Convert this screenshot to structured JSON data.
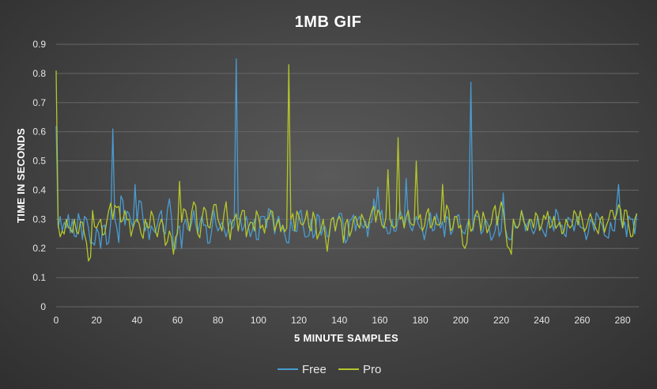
{
  "chart_data": {
    "type": "line",
    "title": "1MB GIF",
    "xlabel": "5 MINUTE SAMPLES",
    "ylabel": "TIME IN SECONDS",
    "xlim": [
      0,
      288
    ],
    "ylim": [
      0,
      0.9
    ],
    "x_ticks": [
      0,
      20,
      40,
      60,
      80,
      100,
      120,
      140,
      160,
      180,
      200,
      220,
      240,
      260,
      280
    ],
    "y_ticks": [
      0,
      0.1,
      0.2,
      0.3,
      0.4,
      0.5,
      0.6,
      0.7,
      0.8,
      0.9
    ],
    "y_tick_labels": [
      "0",
      "0.1",
      "0.2",
      "0.3",
      "0.4",
      "0.5",
      "0.6",
      "0.7",
      "0.8",
      "0.9"
    ],
    "grid": true,
    "legend": "bottom",
    "series": [
      {
        "name": "Free",
        "color": "#4a9bd1",
        "baseline": 0.27,
        "points": [
          [
            0,
            0.62
          ],
          [
            1,
            0.27
          ],
          [
            2,
            0.31
          ],
          [
            3,
            0.26
          ],
          [
            4,
            0.29
          ],
          [
            5,
            0.27
          ],
          [
            8,
            0.3
          ],
          [
            10,
            0.24
          ],
          [
            11,
            0.32
          ],
          [
            13,
            0.23
          ],
          [
            14,
            0.31
          ],
          [
            16,
            0.27
          ],
          [
            18,
            0.22
          ],
          [
            20,
            0.27
          ],
          [
            22,
            0.2
          ],
          [
            24,
            0.28
          ],
          [
            26,
            0.22
          ],
          [
            28,
            0.61
          ],
          [
            29,
            0.3
          ],
          [
            30,
            0.27
          ],
          [
            31,
            0.22
          ],
          [
            32,
            0.38
          ],
          [
            34,
            0.28
          ],
          [
            36,
            0.32
          ],
          [
            38,
            0.27
          ],
          [
            39,
            0.42
          ],
          [
            40,
            0.29
          ],
          [
            42,
            0.36
          ],
          [
            44,
            0.26
          ],
          [
            46,
            0.23
          ],
          [
            50,
            0.28
          ],
          [
            52,
            0.33
          ],
          [
            54,
            0.25
          ],
          [
            56,
            0.37
          ],
          [
            58,
            0.21
          ],
          [
            60,
            0.27
          ],
          [
            62,
            0.2
          ],
          [
            64,
            0.3
          ],
          [
            66,
            0.26
          ],
          [
            68,
            0.33
          ],
          [
            70,
            0.25
          ],
          [
            72,
            0.31
          ],
          [
            74,
            0.28
          ],
          [
            76,
            0.22
          ],
          [
            78,
            0.33
          ],
          [
            80,
            0.26
          ],
          [
            82,
            0.29
          ],
          [
            84,
            0.24
          ],
          [
            86,
            0.3
          ],
          [
            88,
            0.28
          ],
          [
            89,
            0.85
          ],
          [
            90,
            0.3
          ],
          [
            92,
            0.26
          ],
          [
            94,
            0.31
          ],
          [
            96,
            0.24
          ],
          [
            98,
            0.3
          ],
          [
            100,
            0.23
          ],
          [
            102,
            0.31
          ],
          [
            104,
            0.27
          ],
          [
            106,
            0.33
          ],
          [
            108,
            0.25
          ],
          [
            110,
            0.31
          ],
          [
            112,
            0.27
          ],
          [
            114,
            0.22
          ],
          [
            116,
            0.3
          ],
          [
            118,
            0.26
          ],
          [
            120,
            0.32
          ],
          [
            122,
            0.28
          ],
          [
            124,
            0.24
          ],
          [
            126,
            0.3
          ],
          [
            128,
            0.25
          ],
          [
            130,
            0.31
          ],
          [
            132,
            0.27
          ],
          [
            134,
            0.24
          ],
          [
            136,
            0.3
          ],
          [
            138,
            0.26
          ],
          [
            140,
            0.32
          ],
          [
            142,
            0.28
          ],
          [
            144,
            0.23
          ],
          [
            146,
            0.3
          ],
          [
            148,
            0.26
          ],
          [
            150,
            0.31
          ],
          [
            152,
            0.27
          ],
          [
            154,
            0.24
          ],
          [
            156,
            0.29
          ],
          [
            157,
            0.37
          ],
          [
            158,
            0.33
          ],
          [
            159,
            0.41
          ],
          [
            160,
            0.31
          ],
          [
            162,
            0.27
          ],
          [
            164,
            0.25
          ],
          [
            166,
            0.3
          ],
          [
            168,
            0.26
          ],
          [
            170,
            0.33
          ],
          [
            172,
            0.28
          ],
          [
            173,
            0.44
          ],
          [
            174,
            0.3
          ],
          [
            176,
            0.26
          ],
          [
            178,
            0.31
          ],
          [
            180,
            0.27
          ],
          [
            182,
            0.23
          ],
          [
            184,
            0.3
          ],
          [
            186,
            0.26
          ],
          [
            188,
            0.32
          ],
          [
            190,
            0.27
          ],
          [
            192,
            0.24
          ],
          [
            194,
            0.3
          ],
          [
            196,
            0.26
          ],
          [
            198,
            0.31
          ],
          [
            200,
            0.27
          ],
          [
            202,
            0.25
          ],
          [
            204,
            0.3
          ],
          [
            205,
            0.77
          ],
          [
            206,
            0.26
          ],
          [
            208,
            0.31
          ],
          [
            210,
            0.25
          ],
          [
            212,
            0.3
          ],
          [
            214,
            0.27
          ],
          [
            216,
            0.24
          ],
          [
            218,
            0.31
          ],
          [
            220,
            0.26
          ],
          [
            221,
            0.39
          ],
          [
            222,
            0.27
          ],
          [
            224,
            0.23
          ],
          [
            226,
            0.3
          ],
          [
            228,
            0.27
          ],
          [
            230,
            0.33
          ],
          [
            232,
            0.26
          ],
          [
            234,
            0.3
          ],
          [
            236,
            0.25
          ],
          [
            238,
            0.31
          ],
          [
            240,
            0.27
          ],
          [
            242,
            0.24
          ],
          [
            244,
            0.31
          ],
          [
            246,
            0.26
          ],
          [
            248,
            0.32
          ],
          [
            250,
            0.28
          ],
          [
            252,
            0.24
          ],
          [
            254,
            0.3
          ],
          [
            256,
            0.26
          ],
          [
            258,
            0.31
          ],
          [
            260,
            0.27
          ],
          [
            262,
            0.23
          ],
          [
            264,
            0.3
          ],
          [
            266,
            0.26
          ],
          [
            268,
            0.31
          ],
          [
            270,
            0.28
          ],
          [
            272,
            0.24
          ],
          [
            274,
            0.29
          ],
          [
            276,
            0.26
          ],
          [
            278,
            0.42
          ],
          [
            279,
            0.3
          ],
          [
            280,
            0.27
          ],
          [
            282,
            0.24
          ],
          [
            284,
            0.3
          ],
          [
            286,
            0.25
          ],
          [
            287,
            0.32
          ]
        ]
      },
      {
        "name": "Pro",
        "color": "#b5c62a",
        "baseline": 0.28,
        "points": [
          [
            0,
            0.81
          ],
          [
            1,
            0.28
          ],
          [
            2,
            0.24
          ],
          [
            3,
            0.26
          ],
          [
            5,
            0.3
          ],
          [
            7,
            0.27
          ],
          [
            9,
            0.3
          ],
          [
            11,
            0.25
          ],
          [
            13,
            0.29
          ],
          [
            15,
            0.22
          ],
          [
            17,
            0.17
          ],
          [
            18,
            0.33
          ],
          [
            20,
            0.27
          ],
          [
            22,
            0.3
          ],
          [
            24,
            0.25
          ],
          [
            26,
            0.33
          ],
          [
            28,
            0.3
          ],
          [
            30,
            0.34
          ],
          [
            32,
            0.29
          ],
          [
            34,
            0.33
          ],
          [
            36,
            0.3
          ],
          [
            38,
            0.27
          ],
          [
            40,
            0.3
          ],
          [
            42,
            0.25
          ],
          [
            44,
            0.3
          ],
          [
            46,
            0.27
          ],
          [
            48,
            0.31
          ],
          [
            50,
            0.24
          ],
          [
            52,
            0.3
          ],
          [
            54,
            0.21
          ],
          [
            56,
            0.26
          ],
          [
            58,
            0.18
          ],
          [
            60,
            0.25
          ],
          [
            61,
            0.43
          ],
          [
            62,
            0.29
          ],
          [
            64,
            0.33
          ],
          [
            66,
            0.26
          ],
          [
            68,
            0.36
          ],
          [
            70,
            0.25
          ],
          [
            72,
            0.3
          ],
          [
            74,
            0.33
          ],
          [
            76,
            0.27
          ],
          [
            78,
            0.35
          ],
          [
            80,
            0.3
          ],
          [
            82,
            0.26
          ],
          [
            84,
            0.36
          ],
          [
            86,
            0.23
          ],
          [
            88,
            0.3
          ],
          [
            90,
            0.26
          ],
          [
            92,
            0.33
          ],
          [
            94,
            0.24
          ],
          [
            96,
            0.29
          ],
          [
            98,
            0.26
          ],
          [
            100,
            0.31
          ],
          [
            102,
            0.28
          ],
          [
            104,
            0.3
          ],
          [
            106,
            0.33
          ],
          [
            108,
            0.26
          ],
          [
            110,
            0.3
          ],
          [
            112,
            0.28
          ],
          [
            114,
            0.27
          ],
          [
            115,
            0.83
          ],
          [
            116,
            0.3
          ],
          [
            118,
            0.26
          ],
          [
            120,
            0.31
          ],
          [
            122,
            0.28
          ],
          [
            124,
            0.33
          ],
          [
            126,
            0.26
          ],
          [
            128,
            0.3
          ],
          [
            130,
            0.25
          ],
          [
            132,
            0.3
          ],
          [
            134,
            0.19
          ],
          [
            136,
            0.3
          ],
          [
            138,
            0.26
          ],
          [
            140,
            0.31
          ],
          [
            142,
            0.22
          ],
          [
            144,
            0.3
          ],
          [
            146,
            0.26
          ],
          [
            148,
            0.31
          ],
          [
            150,
            0.27
          ],
          [
            152,
            0.3
          ],
          [
            154,
            0.27
          ],
          [
            156,
            0.33
          ],
          [
            158,
            0.29
          ],
          [
            160,
            0.32
          ],
          [
            162,
            0.27
          ],
          [
            164,
            0.47
          ],
          [
            165,
            0.3
          ],
          [
            167,
            0.27
          ],
          [
            169,
            0.58
          ],
          [
            170,
            0.3
          ],
          [
            172,
            0.27
          ],
          [
            174,
            0.33
          ],
          [
            176,
            0.28
          ],
          [
            178,
            0.5
          ],
          [
            179,
            0.3
          ],
          [
            181,
            0.26
          ],
          [
            183,
            0.32
          ],
          [
            185,
            0.27
          ],
          [
            187,
            0.31
          ],
          [
            189,
            0.28
          ],
          [
            191,
            0.42
          ],
          [
            192,
            0.29
          ],
          [
            194,
            0.33
          ],
          [
            196,
            0.27
          ],
          [
            198,
            0.31
          ],
          [
            200,
            0.28
          ],
          [
            202,
            0.2
          ],
          [
            204,
            0.3
          ],
          [
            206,
            0.27
          ],
          [
            208,
            0.33
          ],
          [
            210,
            0.26
          ],
          [
            212,
            0.3
          ],
          [
            214,
            0.27
          ],
          [
            216,
            0.33
          ],
          [
            218,
            0.28
          ],
          [
            220,
            0.36
          ],
          [
            222,
            0.27
          ],
          [
            224,
            0.2
          ],
          [
            225,
            0.18
          ],
          [
            226,
            0.3
          ],
          [
            228,
            0.27
          ],
          [
            230,
            0.33
          ],
          [
            232,
            0.28
          ],
          [
            234,
            0.3
          ],
          [
            236,
            0.27
          ],
          [
            238,
            0.31
          ],
          [
            240,
            0.28
          ],
          [
            242,
            0.3
          ],
          [
            244,
            0.27
          ],
          [
            246,
            0.31
          ],
          [
            248,
            0.28
          ],
          [
            250,
            0.25
          ],
          [
            252,
            0.3
          ],
          [
            254,
            0.27
          ],
          [
            256,
            0.33
          ],
          [
            258,
            0.28
          ],
          [
            260,
            0.3
          ],
          [
            262,
            0.27
          ],
          [
            264,
            0.32
          ],
          [
            266,
            0.28
          ],
          [
            268,
            0.25
          ],
          [
            270,
            0.31
          ],
          [
            272,
            0.28
          ],
          [
            274,
            0.33
          ],
          [
            276,
            0.3
          ],
          [
            278,
            0.35
          ],
          [
            280,
            0.27
          ],
          [
            282,
            0.33
          ],
          [
            284,
            0.24
          ],
          [
            286,
            0.3
          ],
          [
            287,
            0.32
          ]
        ]
      }
    ]
  }
}
